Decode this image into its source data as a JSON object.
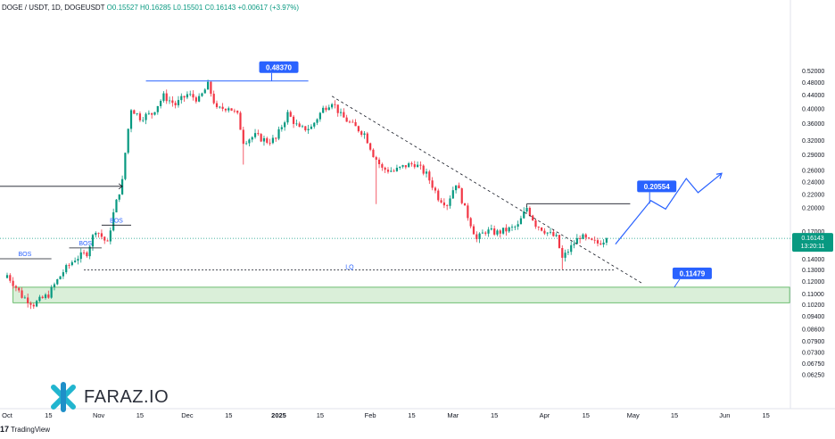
{
  "header": {
    "symbol": "DOGE / USDT, 1D, DOGEUSDT",
    "ohlc_text": "O0.15527  H0.16285  L0.15501  C0.16143",
    "change_text": "+0.00617 (+3.97%)"
  },
  "footer": {
    "brand": "TradingView"
  },
  "watermark": {
    "text": "FARAZ.IO"
  },
  "colors": {
    "up": "#089981",
    "down": "#f23645",
    "accent": "#2962ff",
    "zone": "#d4ecd2"
  },
  "chart_data": {
    "type": "candlestick",
    "scale": "log",
    "y_ticks": [
      "0.52000",
      "0.48000",
      "0.44000",
      "0.40000",
      "0.36000",
      "0.32000",
      "0.29000",
      "0.26000",
      "0.24000",
      "0.22000",
      "0.20000",
      "0.17000",
      "0.15000",
      "0.14000",
      "0.13000",
      "0.12000",
      "0.11000",
      "0.10200",
      "0.09400",
      "0.08600",
      "0.07900",
      "0.07300",
      "0.06750",
      "0.06250"
    ],
    "x_ticks": [
      {
        "label": "Oct",
        "date": "2024-10-01"
      },
      {
        "label": "15",
        "date": "2024-10-15"
      },
      {
        "label": "Nov",
        "date": "2024-11-01"
      },
      {
        "label": "15",
        "date": "2024-11-15"
      },
      {
        "label": "Dec",
        "date": "2024-12-01"
      },
      {
        "label": "15",
        "date": "2024-12-15"
      },
      {
        "label": "2025",
        "date": "2025-01-01"
      },
      {
        "label": "15",
        "date": "2025-01-15"
      },
      {
        "label": "Feb",
        "date": "2025-02-01"
      },
      {
        "label": "15",
        "date": "2025-02-15"
      },
      {
        "label": "Mar",
        "date": "2025-03-01"
      },
      {
        "label": "15",
        "date": "2025-03-15"
      },
      {
        "label": "Apr",
        "date": "2025-04-01"
      },
      {
        "label": "15",
        "date": "2025-04-15"
      },
      {
        "label": "May",
        "date": "2025-05-01"
      },
      {
        "label": "15",
        "date": "2025-05-15"
      },
      {
        "label": "Jun",
        "date": "2025-06-01"
      },
      {
        "label": "15",
        "date": "2025-06-15"
      }
    ],
    "last_price": {
      "price": "0.16143",
      "countdown": "13:20:11"
    },
    "path_points": [
      [
        "2024-10-01",
        0.125
      ],
      [
        "2024-10-06",
        0.108
      ],
      [
        "2024-10-10",
        0.102
      ],
      [
        "2024-10-15",
        0.109
      ],
      [
        "2024-10-20",
        0.128
      ],
      [
        "2024-10-24",
        0.14
      ],
      [
        "2024-10-28",
        0.146
      ],
      [
        "2024-10-31",
        0.172
      ],
      [
        "2024-11-04",
        0.155
      ],
      [
        "2024-11-06",
        0.192
      ],
      [
        "2024-11-09",
        0.24
      ],
      [
        "2024-11-12",
        0.4
      ],
      [
        "2024-11-15",
        0.375
      ],
      [
        "2024-11-19",
        0.385
      ],
      [
        "2024-11-23",
        0.435
      ],
      [
        "2024-11-27",
        0.41
      ],
      [
        "2024-12-01",
        0.44
      ],
      [
        "2024-12-05",
        0.425
      ],
      [
        "2024-12-08",
        0.47
      ],
      [
        "2024-12-11",
        0.395
      ],
      [
        "2024-12-15",
        0.405
      ],
      [
        "2024-12-18",
        0.38
      ],
      [
        "2024-12-20",
        0.318
      ],
      [
        "2024-12-24",
        0.33
      ],
      [
        "2024-12-28",
        0.318
      ],
      [
        "2024-12-31",
        0.322
      ],
      [
        "2025-01-04",
        0.385
      ],
      [
        "2025-01-08",
        0.345
      ],
      [
        "2025-01-12",
        0.35
      ],
      [
        "2025-01-16",
        0.398
      ],
      [
        "2025-01-19",
        0.42
      ],
      [
        "2025-01-22",
        0.38
      ],
      [
        "2025-01-26",
        0.355
      ],
      [
        "2025-01-30",
        0.335
      ],
      [
        "2025-02-02",
        0.29
      ],
      [
        "2025-02-05",
        0.262
      ],
      [
        "2025-02-09",
        0.258
      ],
      [
        "2025-02-13",
        0.268
      ],
      [
        "2025-02-16",
        0.272
      ],
      [
        "2025-02-20",
        0.252
      ],
      [
        "2025-02-24",
        0.215
      ],
      [
        "2025-02-27",
        0.205
      ],
      [
        "2025-03-02",
        0.238
      ],
      [
        "2025-03-05",
        0.198
      ],
      [
        "2025-03-09",
        0.16
      ],
      [
        "2025-03-12",
        0.17
      ],
      [
        "2025-03-16",
        0.168
      ],
      [
        "2025-03-20",
        0.172
      ],
      [
        "2025-03-23",
        0.176
      ],
      [
        "2025-03-26",
        0.2
      ],
      [
        "2025-03-29",
        0.178
      ],
      [
        "2025-04-02",
        0.168
      ],
      [
        "2025-04-05",
        0.162
      ],
      [
        "2025-04-07",
        0.14
      ],
      [
        "2025-04-10",
        0.152
      ],
      [
        "2025-04-13",
        0.164
      ],
      [
        "2025-04-16",
        0.158
      ],
      [
        "2025-04-19",
        0.156
      ],
      [
        "2025-04-22",
        0.16143
      ]
    ],
    "extreme_wicks": [
      {
        "date": "2024-12-20",
        "low": 0.27
      },
      {
        "date": "2025-02-03",
        "low": 0.205
      },
      {
        "date": "2025-04-07",
        "low": 0.13
      }
    ],
    "price_labels": [
      {
        "text": "0.48370",
        "price": 0.4837,
        "date": "2025-01-01",
        "style": "top-badge"
      },
      {
        "text": "0.20554",
        "price": 0.2055,
        "date": "2025-05-09",
        "style": "target-badge"
      },
      {
        "text": "0.11479",
        "price": 0.11479,
        "date": "2025-05-21",
        "style": "zone-badge"
      }
    ],
    "annotations": {
      "bos": [
        {
          "text": "BOS",
          "price": 0.14,
          "from": "2024-09-28",
          "to": "2024-10-16"
        },
        {
          "text": "BOS",
          "price": 0.151,
          "from": "2024-10-22",
          "to": "2024-11-02"
        },
        {
          "text": "BOS",
          "price": 0.177,
          "from": "2024-11-02",
          "to": "2024-11-12"
        }
      ],
      "lq": {
        "text": "LQ",
        "price": 0.1295,
        "from": "2024-10-27",
        "to": "2025-04-25"
      },
      "top_line": {
        "price": 0.4837,
        "from": "2024-11-17",
        "to": "2025-01-11"
      },
      "resistance_line": {
        "price": 0.2055,
        "from": "2025-03-26",
        "to": "2025-04-30"
      },
      "left_arrow": {
        "price": 0.232,
        "from": "2024-09-28",
        "to": "2024-11-09"
      },
      "demand_zone": {
        "top": 0.1148,
        "bottom": 0.103,
        "from": "2024-10-03",
        "to": "2025-06-23"
      },
      "trendline": {
        "from_date": "2025-01-19",
        "from_price": 0.435,
        "to_date": "2025-05-04",
        "to_price": 0.118
      },
      "projection": [
        [
          "2025-04-25",
          0.155
        ],
        [
          "2025-05-07",
          0.21
        ],
        [
          "2025-05-12",
          0.198
        ],
        [
          "2025-05-19",
          0.245
        ],
        [
          "2025-05-23",
          0.222
        ],
        [
          "2025-05-31",
          0.254
        ]
      ]
    }
  }
}
